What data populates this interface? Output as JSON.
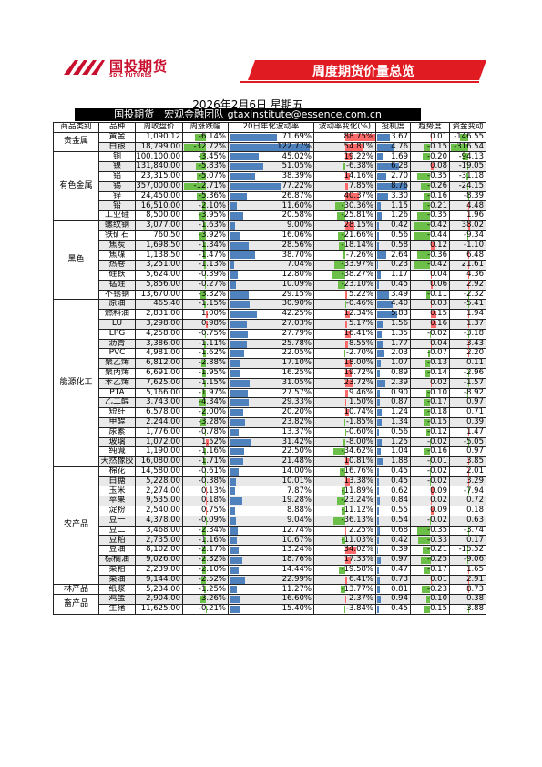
{
  "logo": {
    "text_cn": "国投期货",
    "text_en": "SDIC FUTURES",
    "color": "#c8102e"
  },
  "banner": {
    "title": "周度期货价量总览",
    "color": "#e01b22"
  },
  "report": {
    "date": "2026年2月6日 星期五",
    "header": "国投期货｜宏观金融团队 gtaxinstitute@essence.com.cn"
  },
  "columns": [
    "商品类别",
    "品种",
    "周收盘价",
    "周涨跌幅",
    "20日年化波动率",
    "波动率变化(%)",
    "投机度",
    "趋势度",
    "资金变动"
  ],
  "rows": [
    {
      "cat": "贵金属",
      "name": "黄金",
      "close": "1,090.12",
      "chg": "-6.14%",
      "chgv": -6.14,
      "vol": "71.69%",
      "volv": 71.69,
      "vchg": "88.75%",
      "vchgv": 88.75,
      "spec": "3.67",
      "specv": 3.67,
      "trend": "0.01",
      "trendv": 0.01,
      "fund": "-146.55",
      "fundv": -146.55
    },
    {
      "cat": "贵金属",
      "name": "白银",
      "close": "18,799.00",
      "chg": "-32.72%",
      "chgv": -32.72,
      "vol": "122.77%",
      "volv": 122.77,
      "vchg": "54.81%",
      "vchgv": 54.81,
      "spec": "4.76",
      "specv": 4.76,
      "trend": "-0.15",
      "trendv": -0.15,
      "fund": "-316.54",
      "fundv": -316.54
    },
    {
      "cat": "有色金属",
      "name": "铜",
      "close": "100,100.00",
      "chg": "-3.45%",
      "chgv": -3.45,
      "vol": "45.02%",
      "volv": 45.02,
      "vchg": "19.22%",
      "vchgv": 19.22,
      "spec": "1.69",
      "specv": 1.69,
      "trend": "-0.20",
      "trendv": -0.2,
      "fund": "-94.13",
      "fundv": -94.13
    },
    {
      "cat": "有色金属",
      "name": "镍",
      "close": "131,840.00",
      "chg": "-5.83%",
      "chgv": -5.83,
      "vol": "51.05%",
      "volv": 51.05,
      "vchg": "-6.38%",
      "vchgv": -6.38,
      "spec": "6.28",
      "specv": 6.28,
      "trend": "0.08",
      "trendv": 0.08,
      "fund": "-19.05",
      "fundv": -19.05
    },
    {
      "cat": "有色金属",
      "name": "铝",
      "close": "23,315.00",
      "chg": "-5.07%",
      "chgv": -5.07,
      "vol": "38.39%",
      "volv": 38.39,
      "vchg": "14.16%",
      "vchgv": 14.16,
      "spec": "2.70",
      "specv": 2.7,
      "trend": "-0.35",
      "trendv": -0.35,
      "fund": "-31.18",
      "fundv": -31.18
    },
    {
      "cat": "有色金属",
      "name": "锡",
      "close": "357,000.00",
      "chg": "-12.71%",
      "chgv": -12.71,
      "vol": "77.22%",
      "volv": 77.22,
      "vchg": "7.85%",
      "vchgv": 7.85,
      "spec": "8.76",
      "specv": 8.76,
      "trend": "-0.26",
      "trendv": -0.26,
      "fund": "-24.15",
      "fundv": -24.15
    },
    {
      "cat": "有色金属",
      "name": "锌",
      "close": "24,450.00",
      "chg": "-5.36%",
      "chgv": -5.36,
      "vol": "26.87%",
      "volv": 26.87,
      "vchg": "40.37%",
      "vchgv": 40.37,
      "spec": "3.30",
      "specv": 3.3,
      "trend": "-0.16",
      "trendv": -0.16,
      "fund": "-8.39",
      "fundv": -8.39
    },
    {
      "cat": "有色金属",
      "name": "铅",
      "close": "16,510.00",
      "chg": "-2.10%",
      "chgv": -2.1,
      "vol": "11.60%",
      "volv": 11.6,
      "vchg": "-30.36%",
      "vchgv": -30.36,
      "spec": "1.15",
      "specv": 1.15,
      "trend": "-0.21",
      "trendv": -0.21,
      "fund": "4.48",
      "fundv": 4.48
    },
    {
      "cat": "有色金属",
      "name": "工业硅",
      "close": "8,500.00",
      "chg": "-3.95%",
      "chgv": -3.95,
      "vol": "20.58%",
      "volv": 20.58,
      "vchg": "-25.81%",
      "vchgv": -25.81,
      "spec": "1.26",
      "specv": 1.26,
      "trend": "-0.35",
      "trendv": -0.35,
      "fund": "1.96",
      "fundv": 1.96
    },
    {
      "cat": "黑色",
      "name": "螺纹钢",
      "close": "3,077.00",
      "chg": "-1.63%",
      "chgv": -1.63,
      "vol": "9.00%",
      "volv": 9.0,
      "vchg": "28.15%",
      "vchgv": 28.15,
      "spec": "0.42",
      "specv": 0.42,
      "trend": "-0.42",
      "trendv": -0.42,
      "fund": "38.02",
      "fundv": 38.02
    },
    {
      "cat": "黑色",
      "name": "铁矿石",
      "close": "760.50",
      "chg": "-3.92%",
      "chgv": -3.92,
      "vol": "16.06%",
      "volv": 16.06,
      "vchg": "-21.66%",
      "vchgv": -21.66,
      "spec": "0.56",
      "specv": 0.56,
      "trend": "-0.44",
      "trendv": -0.44,
      "fund": "-9.34",
      "fundv": -9.34
    },
    {
      "cat": "黑色",
      "name": "焦炭",
      "close": "1,698.50",
      "chg": "-1.34%",
      "chgv": -1.34,
      "vol": "28.56%",
      "volv": 28.56,
      "vchg": "-18.14%",
      "vchgv": -18.14,
      "spec": "0.58",
      "specv": 0.58,
      "trend": "0.12",
      "trendv": 0.12,
      "fund": "-1.10",
      "fundv": -1.1
    },
    {
      "cat": "黑色",
      "name": "焦煤",
      "close": "1,138.50",
      "chg": "-1.47%",
      "chgv": -1.47,
      "vol": "38.70%",
      "volv": 38.7,
      "vchg": "-7.26%",
      "vchgv": -7.26,
      "spec": "2.64",
      "specv": 2.64,
      "trend": "-0.36",
      "trendv": -0.36,
      "fund": "6.48",
      "fundv": 6.48
    },
    {
      "cat": "黑色",
      "name": "热卷",
      "close": "3,251.00",
      "chg": "-1.13%",
      "chgv": -1.13,
      "vol": "7.04%",
      "volv": 7.04,
      "vchg": "-33.97%",
      "vchgv": -33.97,
      "spec": "0.23",
      "specv": 0.23,
      "trend": "-0.42",
      "trendv": -0.42,
      "fund": "21.61",
      "fundv": 21.61
    },
    {
      "cat": "黑色",
      "name": "硅铁",
      "close": "5,624.00",
      "chg": "-0.39%",
      "chgv": -0.39,
      "vol": "12.80%",
      "volv": 12.8,
      "vchg": "-38.27%",
      "vchgv": -38.27,
      "spec": "1.17",
      "specv": 1.17,
      "trend": "0.04",
      "trendv": 0.04,
      "fund": "4.36",
      "fundv": 4.36
    },
    {
      "cat": "黑色",
      "name": "锰硅",
      "close": "5,856.00",
      "chg": "-0.27%",
      "chgv": -0.27,
      "vol": "10.09%",
      "volv": 10.09,
      "vchg": "-23.10%",
      "vchgv": -23.1,
      "spec": "0.45",
      "specv": 0.45,
      "trend": "0.06",
      "trendv": 0.06,
      "fund": "2.92",
      "fundv": 2.92
    },
    {
      "cat": "黑色",
      "name": "不锈钢",
      "close": "13,670.00",
      "chg": "-3.32%",
      "chgv": -3.32,
      "vol": "29.15%",
      "volv": 29.15,
      "vchg": "5.22%",
      "vchgv": 5.22,
      "spec": "3.49",
      "specv": 3.49,
      "trend": "-0.11",
      "trendv": -0.11,
      "fund": "-2.32",
      "fundv": -2.32
    },
    {
      "cat": "能源化工",
      "name": "原油",
      "close": "465.40",
      "chg": "-1.15%",
      "chgv": -1.15,
      "vol": "30.90%",
      "volv": 30.9,
      "vchg": "-0.46%",
      "vchgv": -0.46,
      "spec": "4.40",
      "specv": 4.4,
      "trend": "0.03",
      "trendv": 0.03,
      "fund": "-5.41",
      "fundv": -5.41
    },
    {
      "cat": "能源化工",
      "name": "燃料油",
      "close": "2,831.00",
      "chg": "1.00%",
      "chgv": 1.0,
      "vol": "42.25%",
      "volv": 42.25,
      "vchg": "12.34%",
      "vchgv": 12.34,
      "spec": "5.83",
      "specv": 5.83,
      "trend": "0.15",
      "trendv": 0.15,
      "fund": "1.94",
      "fundv": 1.94
    },
    {
      "cat": "能源化工",
      "name": "LU",
      "close": "3,298.00",
      "chg": "0.98%",
      "chgv": 0.98,
      "vol": "27.03%",
      "volv": 27.03,
      "vchg": "5.17%",
      "vchgv": 5.17,
      "spec": "1.56",
      "specv": 1.56,
      "trend": "0.16",
      "trendv": 0.16,
      "fund": "1.37",
      "fundv": 1.37
    },
    {
      "cat": "能源化工",
      "name": "LPG",
      "close": "4,258.00",
      "chg": "-0.75%",
      "chgv": -0.75,
      "vol": "27.79%",
      "volv": 27.79,
      "vchg": "16.41%",
      "vchgv": 16.41,
      "spec": "1.35",
      "specv": 1.35,
      "trend": "-0.02",
      "trendv": -0.02,
      "fund": "-3.18",
      "fundv": -3.18
    },
    {
      "cat": "能源化工",
      "name": "沥青",
      "close": "3,386.00",
      "chg": "-1.11%",
      "chgv": -1.11,
      "vol": "25.78%",
      "volv": 25.78,
      "vchg": "8.55%",
      "vchgv": 8.55,
      "spec": "1.77",
      "specv": 1.77,
      "trend": "0.04",
      "trendv": 0.04,
      "fund": "3.43",
      "fundv": 3.43
    },
    {
      "cat": "能源化工",
      "name": "PVC",
      "close": "4,981.00",
      "chg": "-1.62%",
      "chgv": -1.62,
      "vol": "22.05%",
      "volv": 22.05,
      "vchg": "-2.70%",
      "vchgv": -2.7,
      "spec": "2.03",
      "specv": 2.03,
      "trend": "-0.07",
      "trendv": -0.07,
      "fund": "2.20",
      "fundv": 2.2
    },
    {
      "cat": "能源化工",
      "name": "聚乙烯",
      "close": "6,812.00",
      "chg": "-2.88%",
      "chgv": -2.88,
      "vol": "17.10%",
      "volv": 17.1,
      "vchg": "18.00%",
      "vchgv": 18.0,
      "spec": "1.07",
      "specv": 1.07,
      "trend": "-0.13",
      "trendv": -0.13,
      "fund": "0.11",
      "fundv": 0.11
    },
    {
      "cat": "能源化工",
      "name": "聚丙烯",
      "close": "6,691.00",
      "chg": "-1.95%",
      "chgv": -1.95,
      "vol": "16.25%",
      "volv": 16.25,
      "vchg": "19.72%",
      "vchgv": 19.72,
      "spec": "0.89",
      "specv": 0.89,
      "trend": "-0.14",
      "trendv": -0.14,
      "fund": "-2.96",
      "fundv": -2.96
    },
    {
      "cat": "能源化工",
      "name": "苯乙烯",
      "close": "7,625.00",
      "chg": "-1.15%",
      "chgv": -1.15,
      "vol": "31.05%",
      "volv": 31.05,
      "vchg": "23.72%",
      "vchgv": 23.72,
      "spec": "2.39",
      "specv": 2.39,
      "trend": "0.02",
      "trendv": 0.02,
      "fund": "-1.57",
      "fundv": -1.57
    },
    {
      "cat": "能源化工",
      "name": "PTA",
      "close": "5,166.00",
      "chg": "-1.97%",
      "chgv": -1.97,
      "vol": "27.57%",
      "volv": 27.57,
      "vchg": "9.46%",
      "vchgv": 9.46,
      "spec": "0.90",
      "specv": 0.9,
      "trend": "-0.10",
      "trendv": -0.1,
      "fund": "-8.92",
      "fundv": -8.92
    },
    {
      "cat": "能源化工",
      "name": "乙二醇",
      "close": "3,743.00",
      "chg": "-4.34%",
      "chgv": -4.34,
      "vol": "29.33%",
      "volv": 29.33,
      "vchg": "1.50%",
      "vchgv": 1.5,
      "spec": "0.87",
      "specv": 0.87,
      "trend": "-0.17",
      "trendv": -0.17,
      "fund": "0.97",
      "fundv": 0.97
    },
    {
      "cat": "能源化工",
      "name": "短纤",
      "close": "6,578.00",
      "chg": "-2.00%",
      "chgv": -2.0,
      "vol": "20.20%",
      "volv": 20.2,
      "vchg": "10.74%",
      "vchgv": 10.74,
      "spec": "1.24",
      "specv": 1.24,
      "trend": "-0.18",
      "trendv": -0.18,
      "fund": "0.71",
      "fundv": 0.71
    },
    {
      "cat": "能源化工",
      "name": "甲醇",
      "close": "2,244.00",
      "chg": "-3.28%",
      "chgv": -3.28,
      "vol": "23.82%",
      "volv": 23.82,
      "vchg": "-1.85%",
      "vchgv": -1.85,
      "spec": "1.34",
      "specv": 1.34,
      "trend": "-0.15",
      "trendv": -0.15,
      "fund": "0.39",
      "fundv": 0.39
    },
    {
      "cat": "能源化工",
      "name": "尿素",
      "close": "1,776.00",
      "chg": "-0.78%",
      "chgv": -0.78,
      "vol": "13.37%",
      "volv": 13.37,
      "vchg": "-0.60%",
      "vchgv": -0.6,
      "spec": "0.56",
      "specv": 0.56,
      "trend": "-0.12",
      "trendv": -0.12,
      "fund": "1.47",
      "fundv": 1.47
    },
    {
      "cat": "能源化工",
      "name": "玻璃",
      "close": "1,072.00",
      "chg": "1.52%",
      "chgv": 1.52,
      "vol": "31.42%",
      "volv": 31.42,
      "vchg": "-8.00%",
      "vchgv": -8.0,
      "spec": "1.25",
      "specv": 1.25,
      "trend": "-0.02",
      "trendv": -0.02,
      "fund": "-5.05",
      "fundv": -5.05
    },
    {
      "cat": "能源化工",
      "name": "纯碱",
      "close": "1,190.00",
      "chg": "-1.16%",
      "chgv": -1.16,
      "vol": "22.50%",
      "volv": 22.5,
      "vchg": "-34.62%",
      "vchgv": -34.62,
      "spec": "1.04",
      "specv": 1.04,
      "trend": "-0.16",
      "trendv": -0.16,
      "fund": "0.97",
      "fundv": 0.97
    },
    {
      "cat": "能源化工",
      "name": "天然橡胶",
      "close": "16,080.00",
      "chg": "-1.71%",
      "chgv": -1.71,
      "vol": "21.48%",
      "volv": 21.48,
      "vchg": "10.81%",
      "vchgv": 10.81,
      "spec": "1.88",
      "specv": 1.88,
      "trend": "-0.01",
      "trendv": -0.01,
      "fund": "3.85",
      "fundv": 3.85
    },
    {
      "cat": "农产品",
      "name": "棉花",
      "close": "14,580.00",
      "chg": "-0.61%",
      "chgv": -0.61,
      "vol": "14.00%",
      "volv": 14.0,
      "vchg": "-16.76%",
      "vchgv": -16.76,
      "spec": "0.45",
      "specv": 0.45,
      "trend": "-0.02",
      "trendv": -0.02,
      "fund": "2.01",
      "fundv": 2.01
    },
    {
      "cat": "农产品",
      "name": "白糖",
      "close": "5,228.00",
      "chg": "-0.38%",
      "chgv": -0.38,
      "vol": "10.01%",
      "volv": 10.01,
      "vchg": "13.38%",
      "vchgv": 13.38,
      "spec": "0.45",
      "specv": 0.45,
      "trend": "-0.02",
      "trendv": -0.02,
      "fund": "3.29",
      "fundv": 3.29
    },
    {
      "cat": "农产品",
      "name": "玉米",
      "close": "2,274.00",
      "chg": "0.13%",
      "chgv": 0.13,
      "vol": "7.87%",
      "volv": 7.87,
      "vchg": "-11.89%",
      "vchgv": -11.89,
      "spec": "0.62",
      "specv": 0.62,
      "trend": "0.09",
      "trendv": 0.09,
      "fund": "-7.94",
      "fundv": -7.94
    },
    {
      "cat": "农产品",
      "name": "苹果",
      "close": "9,535.00",
      "chg": "0.18%",
      "chgv": 0.18,
      "vol": "19.28%",
      "volv": 19.28,
      "vchg": "-23.24%",
      "vchgv": -23.24,
      "spec": "0.84",
      "specv": 0.84,
      "trend": "0.02",
      "trendv": 0.02,
      "fund": "0.72",
      "fundv": 0.72
    },
    {
      "cat": "农产品",
      "name": "淀粉",
      "close": "2,540.00",
      "chg": "0.75%",
      "chgv": 0.75,
      "vol": "8.88%",
      "volv": 8.88,
      "vchg": "-11.12%",
      "vchgv": -11.12,
      "spec": "0.55",
      "specv": 0.55,
      "trend": "0.09",
      "trendv": 0.09,
      "fund": "0.18",
      "fundv": 0.18
    },
    {
      "cat": "农产品",
      "name": "豆一",
      "close": "4,378.00",
      "chg": "-0.09%",
      "chgv": -0.09,
      "vol": "9.04%",
      "volv": 9.04,
      "vchg": "-36.13%",
      "vchgv": -36.13,
      "spec": "0.54",
      "specv": 0.54,
      "trend": "-0.02",
      "trendv": -0.02,
      "fund": "0.63",
      "fundv": 0.63
    },
    {
      "cat": "农产品",
      "name": "豆二",
      "close": "3,468.00",
      "chg": "-2.34%",
      "chgv": -2.34,
      "vol": "12.74%",
      "volv": 12.74,
      "vchg": "2.25%",
      "vchgv": 2.25,
      "spec": "0.68",
      "specv": 0.68,
      "trend": "-0.35",
      "trendv": -0.35,
      "fund": "-3.74",
      "fundv": -3.74
    },
    {
      "cat": "农产品",
      "name": "豆粕",
      "close": "2,735.00",
      "chg": "-1.16%",
      "chgv": -1.16,
      "vol": "10.67%",
      "volv": 10.67,
      "vchg": "-11.03%",
      "vchgv": -11.03,
      "spec": "0.42",
      "specv": 0.42,
      "trend": "-0.33",
      "trendv": -0.33,
      "fund": "0.17",
      "fundv": 0.17
    },
    {
      "cat": "农产品",
      "name": "豆油",
      "close": "8,102.00",
      "chg": "-2.17%",
      "chgv": -2.17,
      "vol": "13.24%",
      "volv": 13.24,
      "vchg": "34.02%",
      "vchgv": 34.02,
      "spec": "0.39",
      "specv": 0.39,
      "trend": "-0.21",
      "trendv": -0.21,
      "fund": "-15.52",
      "fundv": -15.52
    },
    {
      "cat": "农产品",
      "name": "棕榈油",
      "close": "9,026.00",
      "chg": "-2.32%",
      "chgv": -2.32,
      "vol": "18.76%",
      "volv": 18.76,
      "vchg": "17.33%",
      "vchgv": 17.33,
      "spec": "0.97",
      "specv": 0.97,
      "trend": "-0.25",
      "trendv": -0.25,
      "fund": "-9.06",
      "fundv": -9.06
    },
    {
      "cat": "农产品",
      "name": "菜粕",
      "close": "2,239.00",
      "chg": "-2.10%",
      "chgv": -2.1,
      "vol": "14.44%",
      "volv": 14.44,
      "vchg": "-19.58%",
      "vchgv": -19.58,
      "spec": "0.47",
      "specv": 0.47,
      "trend": "-0.17",
      "trendv": -0.17,
      "fund": "1.65",
      "fundv": 1.65
    },
    {
      "cat": "农产品",
      "name": "菜油",
      "close": "9,144.00",
      "chg": "-2.52%",
      "chgv": -2.52,
      "vol": "22.99%",
      "volv": 22.99,
      "vchg": "6.41%",
      "vchgv": 6.41,
      "spec": "0.73",
      "specv": 0.73,
      "trend": "0.01",
      "trendv": 0.01,
      "fund": "2.91",
      "fundv": 2.91
    },
    {
      "cat": "林产品",
      "name": "纸浆",
      "close": "5,234.00",
      "chg": "-1.25%",
      "chgv": -1.25,
      "vol": "11.27%",
      "volv": 11.27,
      "vchg": "-13.77%",
      "vchgv": -13.77,
      "spec": "0.81",
      "specv": 0.81,
      "trend": "-0.23",
      "trendv": -0.23,
      "fund": "8.73",
      "fundv": 8.73
    },
    {
      "cat": "畜产品",
      "name": "鸡蛋",
      "close": "2,904.00",
      "chg": "-3.26%",
      "chgv": -3.26,
      "vol": "16.60%",
      "volv": 16.6,
      "vchg": "2.37%",
      "vchgv": 2.37,
      "spec": "0.94",
      "specv": 0.94,
      "trend": "-0.10",
      "trendv": -0.1,
      "fund": "0.38",
      "fundv": 0.38
    },
    {
      "cat": "畜产品",
      "name": "生猪",
      "close": "11,625.00",
      "chg": "-0.21%",
      "chgv": -0.21,
      "vol": "15.40%",
      "volv": 15.4,
      "vchg": "-3.84%",
      "vchgv": -3.84,
      "spec": "0.45",
      "specv": 0.45,
      "trend": "-0.15",
      "trendv": -0.15,
      "fund": "-3.88",
      "fundv": -3.88
    }
  ],
  "colors": {
    "positive": "#ff6b6b",
    "negative": "#6cc04a",
    "volatility": "#4f81bd",
    "spec": "#4f81bd"
  }
}
